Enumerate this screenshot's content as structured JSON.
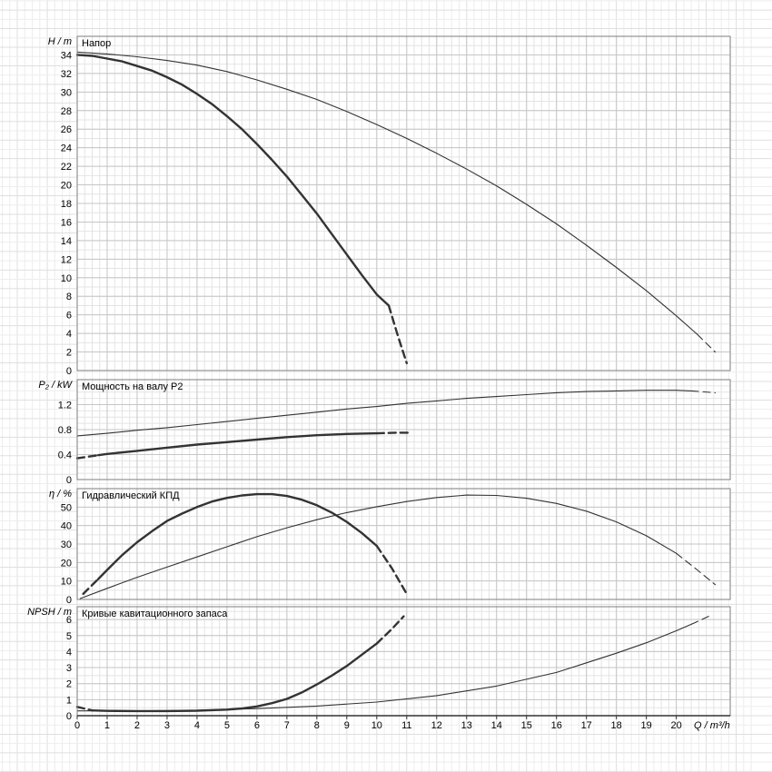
{
  "chart": {
    "xlabel": "Q / m³/h",
    "xlim": [
      0,
      21.8
    ],
    "x_minor_step": 0.25,
    "xticks": {
      "values": [
        0,
        1,
        2,
        3,
        4,
        5,
        6,
        7,
        8,
        9,
        10,
        11,
        12,
        13,
        14,
        15,
        16,
        17,
        18,
        19,
        20
      ],
      "labels": [
        "0",
        "1",
        "2",
        "3",
        "4",
        "5",
        "6",
        "7",
        "8",
        "9",
        "10",
        "11",
        "12",
        "13",
        "14",
        "15",
        "16",
        "17",
        "18",
        "19",
        "20"
      ]
    },
    "colors": {
      "curve": "#333333",
      "grid_minor": "#e4e4e4",
      "grid_major": "#c6c6c6",
      "grid_margin": "#ededed",
      "grid_margin_major": "#dfdfdf",
      "frame": "#7d7d7d",
      "axis": "#333333",
      "text": "#000000"
    }
  },
  "chart_data": [
    {
      "id": "head",
      "type": "line",
      "title": "Напор",
      "ylabel": "H / m",
      "ylim": [
        0,
        36
      ],
      "y_minor": 1,
      "yticks": {
        "values": [
          0,
          2,
          4,
          6,
          8,
          10,
          12,
          14,
          16,
          18,
          20,
          22,
          24,
          26,
          28,
          30,
          32,
          34
        ],
        "labels": [
          "0",
          "2",
          "4",
          "6",
          "8",
          "10",
          "12",
          "14",
          "16",
          "18",
          "20",
          "22",
          "24",
          "26",
          "28",
          "30",
          "32",
          "34"
        ]
      },
      "series": [
        {
          "name": "head-duty-curve",
          "weight": "thick",
          "solid": [
            [
              0,
              34
            ],
            [
              0.5,
              33.9
            ],
            [
              1,
              33.6
            ],
            [
              1.5,
              33.3
            ],
            [
              2,
              32.8
            ],
            [
              2.5,
              32.3
            ],
            [
              3,
              31.6
            ],
            [
              3.5,
              30.8
            ],
            [
              4,
              29.8
            ],
            [
              4.5,
              28.7
            ],
            [
              5,
              27.4
            ],
            [
              5.5,
              26.0
            ],
            [
              6,
              24.4
            ],
            [
              6.5,
              22.7
            ],
            [
              7,
              20.9
            ],
            [
              7.5,
              18.9
            ],
            [
              8,
              16.9
            ],
            [
              8.5,
              14.7
            ],
            [
              9,
              12.5
            ],
            [
              9.5,
              10.3
            ],
            [
              10,
              8.2
            ],
            [
              10.4,
              7.0
            ]
          ],
          "dashed": [
            [
              [
                10.4,
                7.0
              ],
              [
                10.7,
                3.8
              ],
              [
                11,
                0.8
              ]
            ]
          ]
        },
        {
          "name": "head-max-curve",
          "weight": "thin",
          "solid": [
            [
              0,
              34.3
            ],
            [
              1,
              34.1
            ],
            [
              2,
              33.8
            ],
            [
              3,
              33.4
            ],
            [
              4,
              32.9
            ],
            [
              5,
              32.2
            ],
            [
              6,
              31.3
            ],
            [
              7,
              30.3
            ],
            [
              8,
              29.2
            ],
            [
              9,
              27.9
            ],
            [
              10,
              26.5
            ],
            [
              11,
              25.0
            ],
            [
              12,
              23.4
            ],
            [
              13,
              21.7
            ],
            [
              14,
              19.9
            ],
            [
              15,
              17.9
            ],
            [
              16,
              15.8
            ],
            [
              17,
              13.5
            ],
            [
              18,
              11.1
            ],
            [
              19,
              8.6
            ],
            [
              20,
              5.9
            ],
            [
              20.7,
              3.9
            ]
          ],
          "dashed": [
            [
              [
                20.7,
                3.9
              ],
              [
                21.3,
                2.0
              ]
            ]
          ]
        }
      ]
    },
    {
      "id": "power",
      "type": "line",
      "title": "Мощность на валу P2",
      "ylabel": "P₂ / kW",
      "ylim": [
        0,
        1.6
      ],
      "y_minor": 0.1,
      "yticks": {
        "values": [
          0,
          0.4,
          0.8,
          1.2
        ],
        "labels": [
          "0",
          "0.4",
          "0.8",
          "1.2"
        ]
      },
      "series": [
        {
          "name": "power-duty-curve",
          "weight": "thick",
          "solid": [
            [
              0.7,
              0.39
            ],
            [
              1,
              0.41
            ],
            [
              2,
              0.46
            ],
            [
              3,
              0.51
            ],
            [
              4,
              0.56
            ],
            [
              5,
              0.6
            ],
            [
              6,
              0.64
            ],
            [
              7,
              0.68
            ],
            [
              8,
              0.71
            ],
            [
              9,
              0.73
            ],
            [
              10,
              0.74
            ]
          ],
          "dashed": [
            [
              [
                0,
                0.34
              ],
              [
                0.7,
                0.39
              ]
            ],
            [
              [
                10,
                0.74
              ],
              [
                10.7,
                0.75
              ],
              [
                11.1,
                0.75
              ]
            ]
          ]
        },
        {
          "name": "power-max-curve",
          "weight": "thin",
          "solid": [
            [
              0,
              0.7
            ],
            [
              1,
              0.74
            ],
            [
              2,
              0.79
            ],
            [
              3,
              0.83
            ],
            [
              4,
              0.88
            ],
            [
              5,
              0.93
            ],
            [
              6,
              0.98
            ],
            [
              7,
              1.03
            ],
            [
              8,
              1.08
            ],
            [
              9,
              1.13
            ],
            [
              10,
              1.17
            ],
            [
              11,
              1.22
            ],
            [
              12,
              1.26
            ],
            [
              13,
              1.3
            ],
            [
              14,
              1.33
            ],
            [
              15,
              1.36
            ],
            [
              16,
              1.39
            ],
            [
              17,
              1.41
            ],
            [
              18,
              1.42
            ],
            [
              19,
              1.43
            ],
            [
              20,
              1.43
            ],
            [
              20.5,
              1.42
            ]
          ],
          "dashed": [
            [
              [
                20.5,
                1.42
              ],
              [
                21.3,
                1.39
              ]
            ]
          ]
        }
      ]
    },
    {
      "id": "efficiency",
      "type": "line",
      "title": "Гидравлический КПД",
      "ylabel": "η / %",
      "ylim": [
        0,
        60
      ],
      "y_minor": 5,
      "yticks": {
        "values": [
          0,
          10,
          20,
          30,
          40,
          50
        ],
        "labels": [
          "0",
          "10",
          "20",
          "30",
          "40",
          "50"
        ]
      },
      "series": [
        {
          "name": "efficiency-duty-curve",
          "weight": "thick",
          "solid": [
            [
              0.7,
              11
            ],
            [
              1,
              16
            ],
            [
              1.5,
              24
            ],
            [
              2,
              31
            ],
            [
              2.5,
              37
            ],
            [
              3,
              42.5
            ],
            [
              3.5,
              46.5
            ],
            [
              4,
              50
            ],
            [
              4.5,
              53
            ],
            [
              5,
              55
            ],
            [
              5.5,
              56.3
            ],
            [
              6,
              57
            ],
            [
              6.5,
              57
            ],
            [
              7,
              56
            ],
            [
              7.5,
              54
            ],
            [
              8,
              51
            ],
            [
              8.5,
              47
            ],
            [
              9,
              42
            ],
            [
              9.5,
              36
            ],
            [
              10,
              29
            ]
          ],
          "dashed": [
            [
              [
                0.2,
                3
              ],
              [
                0.7,
                11
              ]
            ],
            [
              [
                10,
                29
              ],
              [
                10.5,
                17
              ],
              [
                11,
                3
              ]
            ]
          ]
        },
        {
          "name": "efficiency-max-curve",
          "weight": "thin",
          "solid": [
            [
              0.1,
              0.5
            ],
            [
              1,
              6
            ],
            [
              2,
              12
            ],
            [
              3,
              17.5
            ],
            [
              4,
              23
            ],
            [
              5,
              28.5
            ],
            [
              6,
              34
            ],
            [
              7,
              38.8
            ],
            [
              8,
              43.2
            ],
            [
              9,
              47
            ],
            [
              10,
              50.2
            ],
            [
              11,
              53
            ],
            [
              12,
              55.2
            ],
            [
              13,
              56.5
            ],
            [
              14,
              56.3
            ],
            [
              15,
              54.8
            ],
            [
              16,
              52
            ],
            [
              17,
              47.8
            ],
            [
              18,
              42
            ],
            [
              19,
              34.5
            ],
            [
              20,
              25
            ]
          ],
          "dashed": [
            [
              [
                20,
                25
              ],
              [
                20.7,
                16
              ],
              [
                21.3,
                8
              ]
            ]
          ]
        }
      ]
    },
    {
      "id": "npsh",
      "type": "line",
      "title": "Кривые кавитационного запаса",
      "ylabel": "NPSH / m",
      "ylim": [
        0,
        6.8
      ],
      "y_minor": 0.5,
      "yticks": {
        "values": [
          0,
          1,
          2,
          3,
          4,
          5,
          6
        ],
        "labels": [
          "0",
          "1",
          "2",
          "3",
          "4",
          "5",
          "6"
        ]
      },
      "series": [
        {
          "name": "npsh-duty-curve",
          "weight": "thick",
          "solid": [
            [
              0.5,
              0.33
            ],
            [
              1,
              0.3
            ],
            [
              2,
              0.29
            ],
            [
              3,
              0.29
            ],
            [
              4,
              0.31
            ],
            [
              5,
              0.38
            ],
            [
              5.5,
              0.45
            ],
            [
              6,
              0.58
            ],
            [
              6.5,
              0.78
            ],
            [
              7,
              1.05
            ],
            [
              7.5,
              1.45
            ],
            [
              8,
              1.95
            ],
            [
              8.5,
              2.5
            ],
            [
              9,
              3.1
            ],
            [
              9.5,
              3.8
            ],
            [
              10,
              4.5
            ]
          ],
          "dashed": [
            [
              [
                0,
                0.55
              ],
              [
                0.5,
                0.33
              ]
            ],
            [
              [
                10,
                4.5
              ],
              [
                10.5,
                5.4
              ],
              [
                10.9,
                6.2
              ]
            ]
          ]
        },
        {
          "name": "npsh-max-curve",
          "weight": "thin",
          "solid": [
            [
              0,
              0.3
            ],
            [
              2,
              0.3
            ],
            [
              4,
              0.34
            ],
            [
              6,
              0.44
            ],
            [
              8,
              0.6
            ],
            [
              10,
              0.85
            ],
            [
              12,
              1.25
            ],
            [
              14,
              1.85
            ],
            [
              16,
              2.7
            ],
            [
              18,
              3.9
            ],
            [
              19,
              4.55
            ],
            [
              20,
              5.3
            ],
            [
              20.5,
              5.7
            ]
          ],
          "dashed": [
            [
              [
                20.5,
                5.7
              ],
              [
                21.2,
                6.3
              ]
            ]
          ]
        }
      ]
    }
  ]
}
